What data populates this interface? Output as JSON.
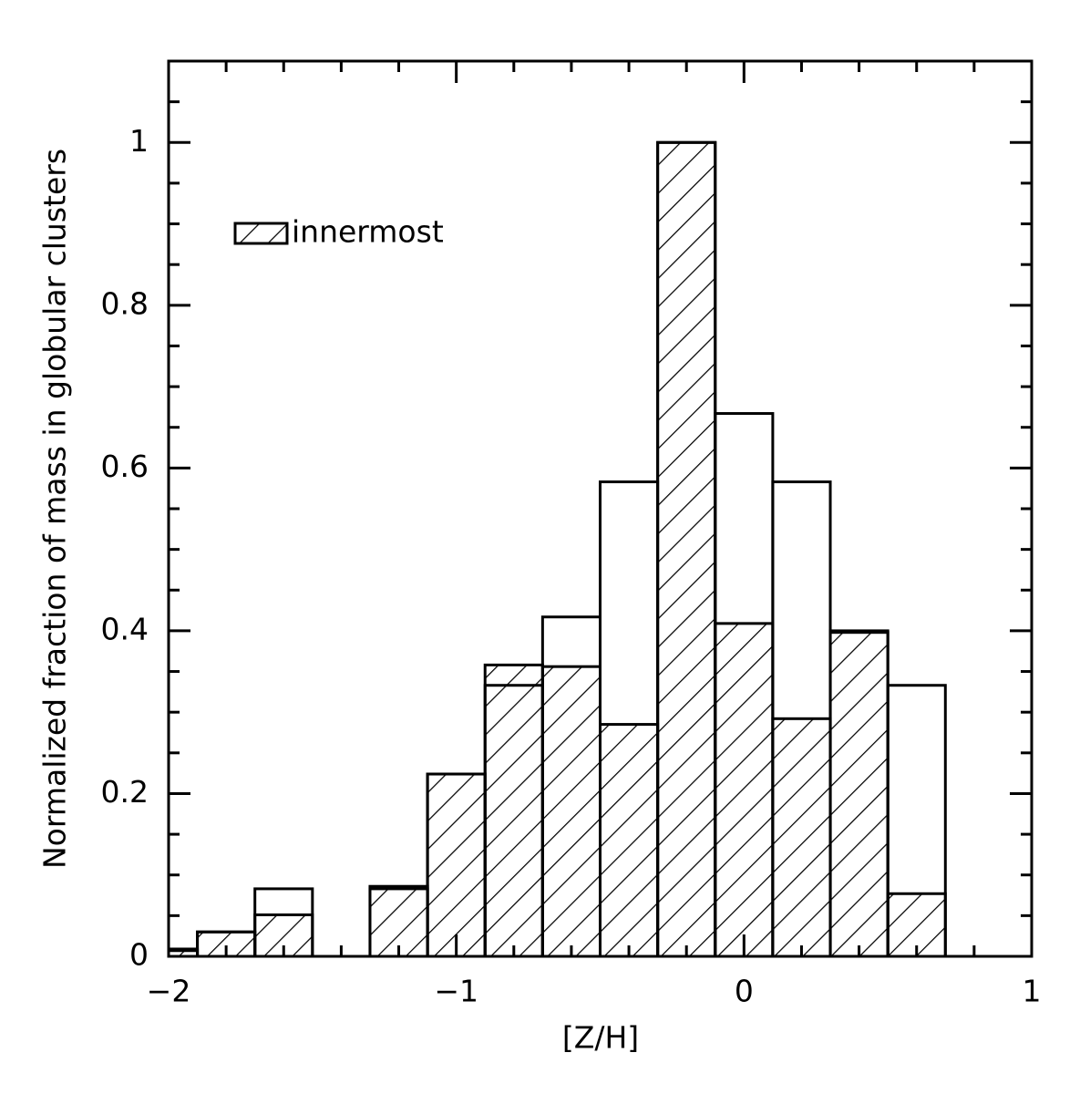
{
  "chart_data": {
    "type": "histogram",
    "xlabel": "[Z/H]",
    "ylabel": "Normalized fraction of mass in globular clusters",
    "bins": [
      -2.1,
      -1.9,
      -1.7,
      -1.5,
      -1.3,
      -1.1,
      -0.9,
      -0.7,
      -0.5,
      -0.3,
      -0.1,
      0.1,
      0.3,
      0.5,
      0.7
    ],
    "series": [
      {
        "name": "innermost",
        "color": "#000000",
        "hatch": true,
        "values": [
          0.009,
          0.03,
          0.051,
          0,
          0.086,
          0.224,
          0.358,
          0.356,
          0.285,
          1.0,
          0.409,
          0.292,
          0.398,
          0.077
        ]
      },
      {
        "color": "#000000",
        "hatch": false,
        "values": [
          0.007,
          0.03,
          0.083,
          0,
          0.083,
          0.224,
          0.333,
          0.417,
          0.583,
          1.0,
          0.667,
          0.583,
          0.4,
          0.333
        ]
      }
    ],
    "xlim": [
      -2,
      1
    ],
    "ylim": [
      0,
      1.1
    ],
    "xticks": [
      {
        "value": -2,
        "label": "−2"
      },
      {
        "value": -1,
        "label": "−1"
      },
      0,
      1
    ],
    "yticks": [
      0,
      0.2,
      0.4,
      0.6,
      0.8,
      1
    ],
    "xticks_minor": [
      -1.8,
      -1.6,
      -1.4,
      -1.2,
      -0.8,
      -0.6,
      -0.4,
      -0.2,
      0.2,
      0.4,
      0.6,
      0.8
    ],
    "yticks_minor": [
      0.05,
      0.1,
      0.15,
      0.25,
      0.3,
      0.35,
      0.45,
      0.5,
      0.55,
      0.65,
      0.7,
      0.75,
      0.85,
      0.9,
      0.95,
      1.05
    ],
    "legend": "upper left"
  }
}
